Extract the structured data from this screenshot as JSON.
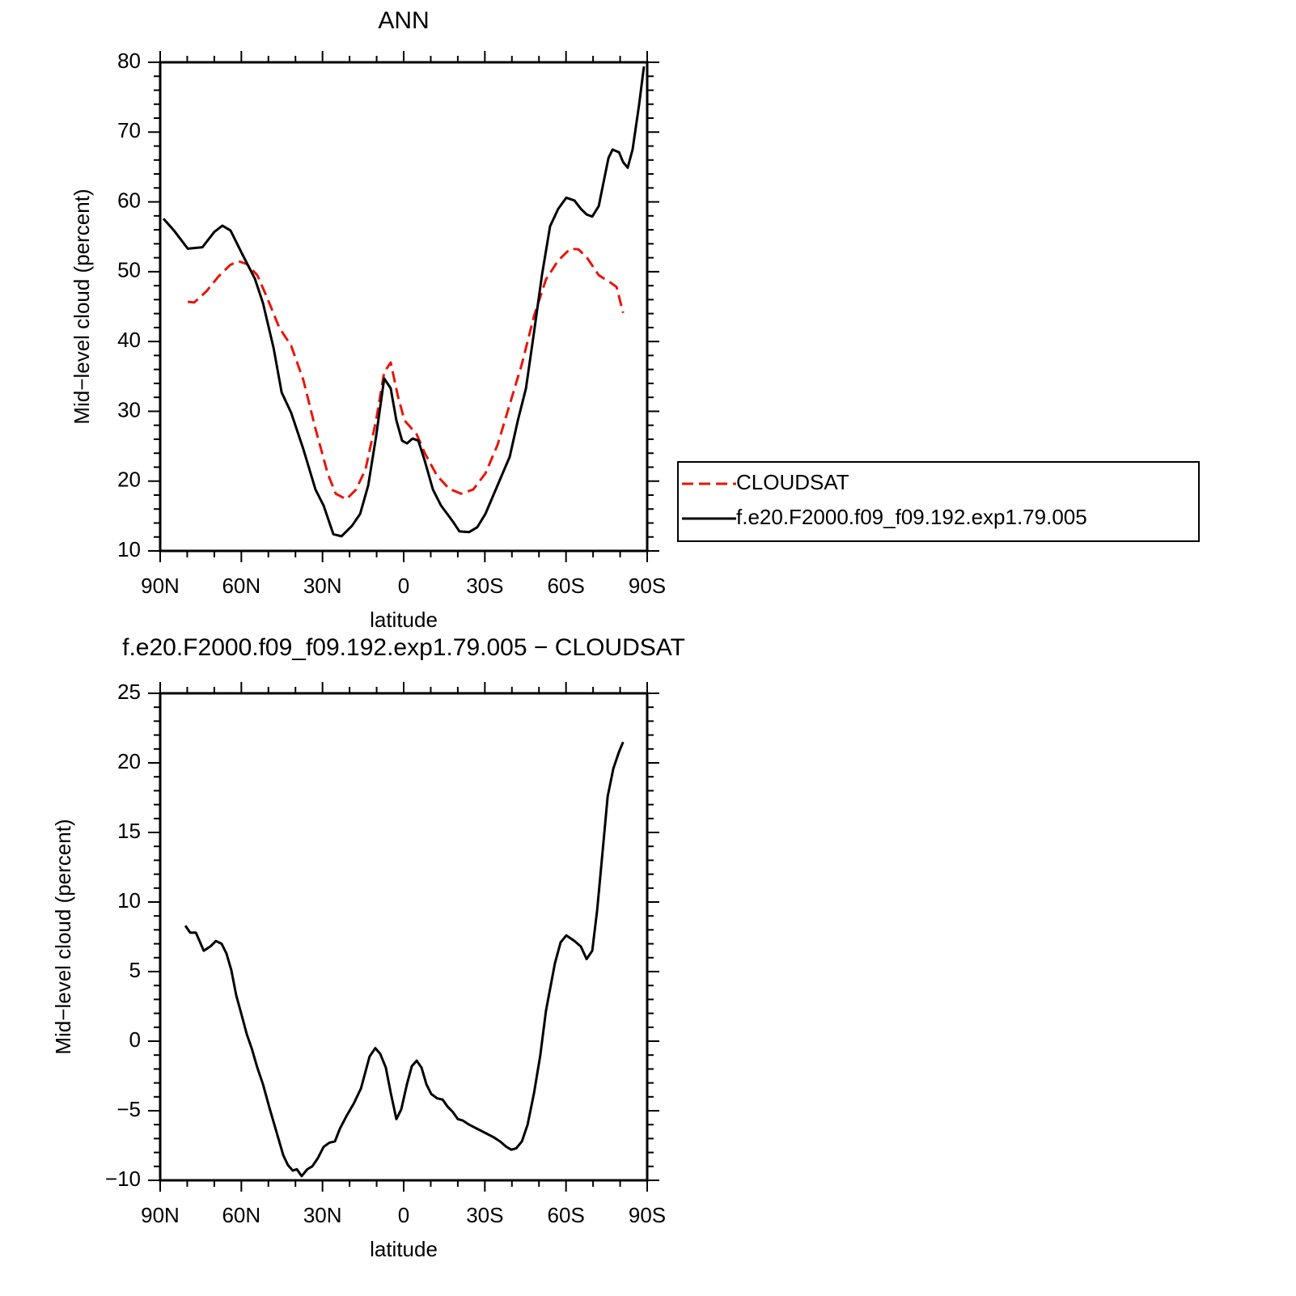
{
  "chart_data": [
    {
      "type": "line",
      "title": "ANN",
      "xlabel": "latitude",
      "ylabel": "Mid−level cloud (percent)",
      "xlim": [
        90,
        -90
      ],
      "ylim": [
        10,
        80
      ],
      "xticks": [
        {
          "value": 90,
          "label": "90N"
        },
        {
          "value": 60,
          "label": "60N"
        },
        {
          "value": 30,
          "label": "30N"
        },
        0,
        {
          "value": -30,
          "label": "30S"
        },
        {
          "value": -60,
          "label": "60S"
        },
        {
          "value": -90,
          "label": "90S"
        }
      ],
      "xminorticks": [
        80,
        70,
        50,
        40,
        20,
        10,
        -10,
        -20,
        -40,
        -50,
        -70,
        -80
      ],
      "yticks": [
        10,
        20,
        30,
        40,
        50,
        60,
        70,
        80
      ],
      "yminorticks": [
        12,
        14,
        16,
        18,
        22,
        24,
        26,
        28,
        32,
        34,
        36,
        38,
        42,
        44,
        46,
        48,
        52,
        54,
        56,
        58,
        62,
        64,
        66,
        68,
        72,
        74,
        76,
        78
      ],
      "legend": "right",
      "series": [
        {
          "name": "CLOUDSAT",
          "color": "#e8150b",
          "linestyle": "dashed",
          "x": [
            79.8,
            77.4,
            72.9,
            68.5,
            64,
            61,
            58,
            54.1,
            50.5,
            46,
            41.6,
            37.1,
            32.6,
            28.1,
            25.1,
            21.2,
            17.6,
            14.1,
            10.2,
            7.2,
            4.8,
            2.1,
            -0.3,
            -4.8,
            -7.8,
            -12.3,
            -16.8,
            -21.2,
            -25.7,
            -30.2,
            -34.7,
            -39.2,
            -43.7,
            -48.2,
            -52.6,
            -57.1,
            -61.6,
            -64.6,
            -67.6,
            -72.1,
            -76.6,
            -78.7,
            -81.1
          ],
          "values": [
            45.7,
            45.6,
            47.2,
            49.3,
            51,
            51.5,
            51.1,
            49.5,
            46.3,
            42,
            39.4,
            34.5,
            27.5,
            21.1,
            18.2,
            17.4,
            18.8,
            21.7,
            28.7,
            35.6,
            37,
            32.1,
            28.7,
            26.7,
            24,
            20.8,
            18.9,
            18.2,
            18.8,
            21.1,
            25.2,
            31,
            36.8,
            43.7,
            48.9,
            51.6,
            53.3,
            53.2,
            52.1,
            49.5,
            48.4,
            47.8,
            44.1
          ]
        },
        {
          "name": "f.e20.F2000.f09_f09.192.exp1.79.005",
          "color": "#000000",
          "linestyle": "solid",
          "x": [
            88.8,
            84.9,
            79.8,
            74.4,
            70,
            67,
            64,
            59.5,
            55,
            52,
            48.1,
            45.1,
            41.6,
            37.1,
            32.6,
            29.6,
            26,
            23,
            19.1,
            16.1,
            13.1,
            10.2,
            7.2,
            4.8,
            2.7,
            0.6,
            -1.2,
            -3.3,
            -5.4,
            -7.8,
            -10.8,
            -13.8,
            -18.2,
            -20.6,
            -24.2,
            -27.2,
            -30.2,
            -34.7,
            -39.2,
            -42.2,
            -45.2,
            -48.2,
            -51.1,
            -54.1,
            -57.1,
            -60.1,
            -63.1,
            -65.5,
            -67.6,
            -69.7,
            -72.1,
            -73.6,
            -75.7,
            -77.2,
            -79.6,
            -81.1,
            -82.8,
            -84.6,
            -87,
            -88.8
          ],
          "values": [
            57.6,
            55.9,
            53.3,
            53.5,
            55.7,
            56.6,
            55.9,
            52.4,
            49,
            45.5,
            39.1,
            32.7,
            29.8,
            24.6,
            18.8,
            16.5,
            12.4,
            12.1,
            13.6,
            15.3,
            19.4,
            26.4,
            34.7,
            33.3,
            28.7,
            25.8,
            25.4,
            26.1,
            25.8,
            22.9,
            18.8,
            16.5,
            14.2,
            12.8,
            12.7,
            13.4,
            15.3,
            19.4,
            23.5,
            28.7,
            33.3,
            41.4,
            49.5,
            56.5,
            59,
            60.6,
            60.2,
            59,
            58.2,
            57.9,
            59.4,
            62.3,
            66.3,
            67.5,
            67.1,
            65.7,
            64.9,
            67.5,
            73.9,
            79.4
          ]
        }
      ]
    },
    {
      "type": "line",
      "title": "f.e20.F2000.f09_f09.192.exp1.79.005 − CLOUDSAT",
      "xlabel": "latitude",
      "ylabel": "Mid−level cloud (percent)",
      "xlim": [
        90,
        -90
      ],
      "ylim": [
        -10,
        25
      ],
      "xticks": [
        {
          "value": 90,
          "label": "90N"
        },
        {
          "value": 60,
          "label": "60N"
        },
        {
          "value": 30,
          "label": "30N"
        },
        0,
        {
          "value": -30,
          "label": "30S"
        },
        {
          "value": -60,
          "label": "60S"
        },
        {
          "value": -90,
          "label": "90S"
        }
      ],
      "xminorticks": [
        80,
        70,
        50,
        40,
        20,
        10,
        -10,
        -20,
        -40,
        -50,
        -70,
        -80
      ],
      "yticks": [
        {
          "value": -10,
          "label": "−10"
        },
        {
          "value": -5,
          "label": "−5"
        },
        0,
        5,
        10,
        15,
        20,
        25
      ],
      "yminorticks": [
        -9,
        -8,
        -7,
        -6,
        -4,
        -3,
        -2,
        -1,
        1,
        2,
        3,
        4,
        6,
        7,
        8,
        9,
        11,
        12,
        13,
        14,
        16,
        17,
        18,
        19,
        21,
        22,
        23,
        24
      ],
      "series": [
        {
          "color": "#000000",
          "linestyle": "solid",
          "x": [
            80.7,
            78.9,
            76.8,
            73.9,
            71.5,
            69.4,
            67.3,
            65.5,
            63.7,
            61.9,
            59.5,
            58,
            56.2,
            54.1,
            52,
            49.6,
            46.9,
            44.5,
            42.8,
            41,
            39.5,
            37.7,
            35.6,
            33.8,
            31.7,
            29.6,
            27.5,
            25.4,
            23.6,
            21.2,
            18.5,
            15.8,
            12.6,
            10.5,
            8.7,
            6.6,
            4.8,
            2.7,
            0.9,
            -1.2,
            -3,
            -4.8,
            -6.6,
            -8.4,
            -10.2,
            -12.3,
            -14.4,
            -16.2,
            -18.2,
            -20,
            -21.8,
            -24.2,
            -27.2,
            -30.2,
            -33.2,
            -35.6,
            -38,
            -39.8,
            -41.6,
            -43.7,
            -45.8,
            -48.2,
            -50.5,
            -52.6,
            -55.9,
            -58,
            -60.1,
            -63.1,
            -65.5,
            -67.6,
            -69.7,
            -71.5,
            -73.6,
            -75.4,
            -77.5,
            -79.6,
            -81.1
          ],
          "values": [
            8.3,
            7.8,
            7.8,
            6.5,
            6.8,
            7.2,
            7.0,
            6.3,
            5.1,
            3.3,
            1.6,
            0.5,
            -0.5,
            -1.9,
            -3.1,
            -4.8,
            -6.6,
            -8.2,
            -8.9,
            -9.3,
            -9.2,
            -9.7,
            -9.2,
            -9.0,
            -8.4,
            -7.6,
            -7.3,
            -7.2,
            -6.3,
            -5.4,
            -4.5,
            -3.4,
            -1.1,
            -0.5,
            -0.9,
            -1.9,
            -3.7,
            -5.6,
            -4.9,
            -3.1,
            -1.8,
            -1.4,
            -1.9,
            -3.1,
            -3.8,
            -4.1,
            -4.2,
            -4.7,
            -5.1,
            -5.6,
            -5.7,
            -6.0,
            -6.3,
            -6.6,
            -6.9,
            -7.2,
            -7.6,
            -7.8,
            -7.7,
            -7.2,
            -6.0,
            -3.7,
            -1.0,
            2.2,
            5.6,
            7.1,
            7.6,
            7.2,
            6.8,
            5.9,
            6.5,
            9.4,
            13.8,
            17.6,
            19.6,
            20.8,
            21.5
          ]
        }
      ]
    }
  ]
}
